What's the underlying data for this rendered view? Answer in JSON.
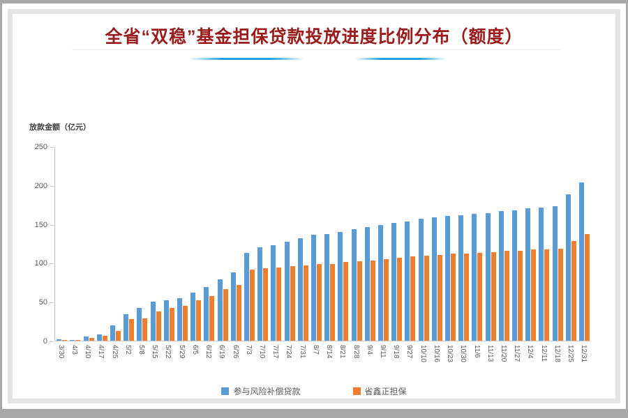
{
  "page": {
    "title": "全省“双稳”基金担保贷款投放进度比例分布（额度）"
  },
  "colors": {
    "title_text": "#9a1b1b",
    "accent_line": "#1e9ee3",
    "axis_line": "#c6c6c6",
    "tick_text": "#595959",
    "inner_frame": "#e4e4e4",
    "page_background": "#a9a9a9",
    "series_blue": "#5b9bd5",
    "series_orange": "#ed7d31"
  },
  "chart_data": {
    "type": "bar",
    "title": "全省“双稳”基金担保贷款投放进度比例分布（额度）",
    "xlabel": "",
    "ylabel": "放款金额（亿元）",
    "ylim": [
      0,
      250
    ],
    "yticks": [
      0,
      50,
      100,
      150,
      200,
      250
    ],
    "grid": false,
    "legend_position": "bottom",
    "categories": [
      "3/30",
      "4/3",
      "4/10",
      "4/17",
      "4/25",
      "5/2",
      "5/8",
      "5/15",
      "5/22",
      "5/29",
      "6/5",
      "6/12",
      "6/19",
      "6/26",
      "7/3",
      "7/10",
      "7/17",
      "7/24",
      "7/31",
      "8/7",
      "8/14",
      "8/21",
      "8/28",
      "9/4",
      "9/11",
      "9/18",
      "9/27",
      "10/10",
      "10/16",
      "10/23",
      "10/30",
      "11/6",
      "11/13",
      "11/20",
      "11/27",
      "12/4",
      "12/11",
      "12/18",
      "12/25",
      "12/31"
    ],
    "series": [
      {
        "name": "参与风险补偿贷款",
        "color": "#5b9bd5",
        "values": [
          2,
          1,
          5,
          8,
          20,
          34,
          42,
          50,
          52,
          55,
          62,
          69,
          79,
          88,
          113,
          120,
          123,
          127,
          132,
          136,
          137,
          140,
          143,
          146,
          149,
          151,
          153,
          157,
          159,
          160,
          161,
          163,
          164,
          167,
          168,
          170,
          171,
          173,
          188,
          203
        ]
      },
      {
        "name": "省鑫正担保",
        "color": "#ed7d31",
        "values": [
          1,
          1,
          4,
          6,
          13,
          28,
          29,
          38,
          42,
          45,
          52,
          57,
          66,
          72,
          91,
          93,
          94,
          96,
          97,
          99,
          99,
          101,
          102,
          103,
          105,
          107,
          108,
          109,
          110,
          112,
          112,
          113,
          114,
          116,
          116,
          117,
          117,
          118,
          128,
          137
        ]
      }
    ]
  }
}
